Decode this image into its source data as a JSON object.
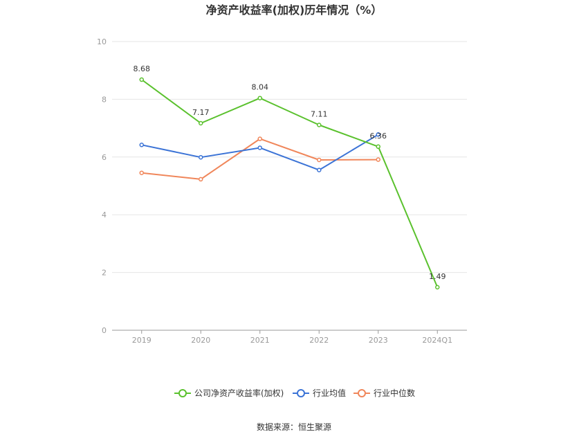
{
  "chart_data": {
    "type": "line",
    "title": "净资产收益率(加权)历年情况（%）",
    "categories": [
      "2019",
      "2020",
      "2021",
      "2022",
      "2023",
      "2024Q1"
    ],
    "ylim": [
      0,
      10
    ],
    "yticks": [
      "0",
      "2",
      "4",
      "6",
      "8",
      "10"
    ],
    "grid": true,
    "legend_position": "bottom",
    "series": [
      {
        "name": "公司净资产收益率(加权)",
        "color": "#5ac12d",
        "values": [
          8.68,
          7.17,
          8.04,
          7.11,
          6.36,
          1.49
        ],
        "labels": [
          "8.68",
          "7.17",
          "8.04",
          "7.11",
          "6.36",
          "1.49"
        ]
      },
      {
        "name": "行业均值",
        "color": "#3b73d6",
        "values": [
          6.42,
          5.99,
          6.32,
          5.55,
          6.78,
          null
        ]
      },
      {
        "name": "行业中位数",
        "color": "#f0865a",
        "values": [
          5.45,
          5.23,
          6.63,
          5.9,
          5.91,
          null
        ]
      }
    ]
  },
  "source_text": "数据来源：恒生聚源"
}
